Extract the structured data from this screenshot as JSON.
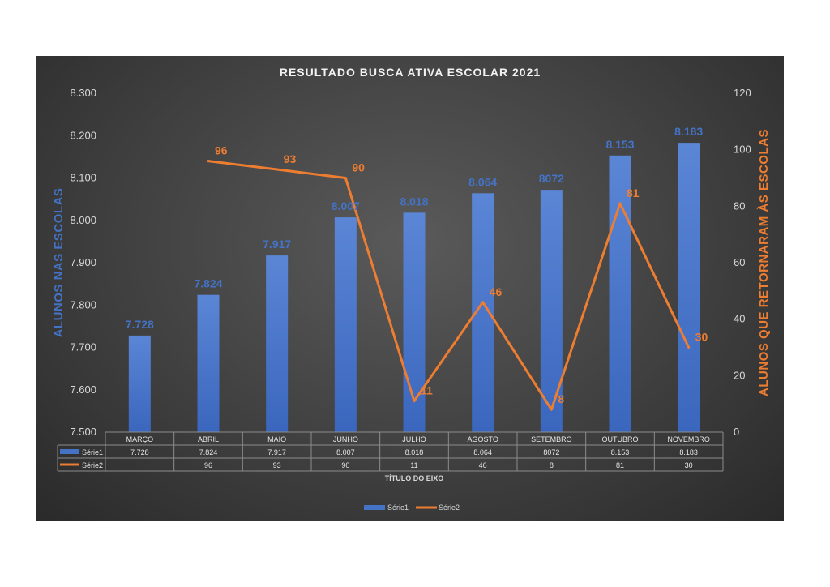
{
  "chart_data": {
    "type": "bar",
    "title": "RESULTADO BUSCA ATIVA ESCOLAR 2021",
    "xlabel": "TÍTULO DO EIXO",
    "ylabel": "ALUNOS NAS ESCOLAS",
    "y2label": "ALUNOS QUE RETORNARAM ÀS ESCOLAS",
    "categories": [
      "MARÇO",
      "ABRIL",
      "MAIO",
      "JUNHO",
      "JULHO",
      "AGOSTO",
      "SETEMBRO",
      "OUTUBRO",
      "NOVEMBRO"
    ],
    "ylim": [
      7500,
      8300
    ],
    "yticks": [
      "7.500",
      "7.600",
      "7.700",
      "7.800",
      "7.900",
      "8.000",
      "8.100",
      "8.200",
      "8.300"
    ],
    "y2lim": [
      0,
      120
    ],
    "y2ticks": [
      "0",
      "20",
      "40",
      "60",
      "80",
      "100",
      "120"
    ],
    "series": [
      {
        "name": "Série1",
        "type": "bar",
        "axis": "left",
        "color": "#4472c4",
        "values": [
          7728,
          7824,
          7917,
          8007,
          8018,
          8064,
          8072,
          8153,
          8183
        ],
        "labels": [
          "7.728",
          "7.824",
          "7.917",
          "8.007",
          "8.018",
          "8.064",
          "8072",
          "8.153",
          "8.183"
        ]
      },
      {
        "name": "Série2",
        "type": "line",
        "axis": "right",
        "color": "#ed7d31",
        "values": [
          null,
          96,
          93,
          90,
          11,
          46,
          8,
          81,
          30
        ],
        "labels": [
          "",
          "96",
          "93",
          "90",
          "11",
          "46",
          "8",
          "81",
          "30"
        ]
      }
    ],
    "legend": "bottom",
    "data_table": true,
    "grid": false
  }
}
